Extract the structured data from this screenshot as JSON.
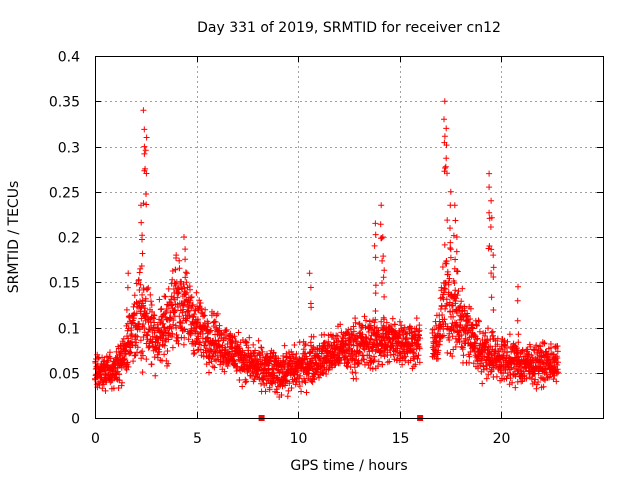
{
  "chart_data": {
    "type": "scatter",
    "title": "Day 331 of 2019, SRMTID for receiver cn12",
    "xlabel": "GPS time / hours",
    "ylabel": "SRMTID / TECUs",
    "xlim": [
      0,
      25
    ],
    "ylim": [
      0,
      0.4
    ],
    "grid": true,
    "marker": "plus",
    "color": "#ff0000",
    "x_ticks": [
      0,
      5,
      10,
      15,
      20
    ],
    "x_tick_labels": [
      "0",
      "5",
      "10",
      "15",
      "20"
    ],
    "y_ticks": [
      0,
      0.05,
      0.1,
      0.15,
      0.2,
      0.25,
      0.3,
      0.35,
      0.4
    ],
    "y_tick_labels": [
      "0",
      "0.05",
      "0.1",
      "0.15",
      "0.2",
      "0.25",
      "0.3",
      "0.35",
      "0.4"
    ],
    "series": [
      {
        "name": "SRMTID",
        "x_range": [
          0.0,
          22.8
        ],
        "sample_interval_hours": 0.0083,
        "data_gap_hours": [
          16.0,
          16.6
        ],
        "envelope": {
          "hours": [
            0.0,
            1.0,
            1.8,
            2.2,
            2.5,
            3.0,
            3.5,
            4.0,
            4.5,
            5.0,
            6.0,
            7.0,
            8.0,
            9.0,
            10.0,
            11.0,
            12.0,
            13.0,
            14.0,
            15.0,
            16.8,
            17.3,
            17.8,
            18.5,
            19.0,
            19.5,
            20.0,
            21.0,
            22.0,
            22.8
          ],
          "median": [
            0.05,
            0.055,
            0.085,
            0.12,
            0.11,
            0.09,
            0.1,
            0.13,
            0.12,
            0.1,
            0.085,
            0.07,
            0.055,
            0.05,
            0.055,
            0.065,
            0.075,
            0.08,
            0.085,
            0.085,
            0.08,
            0.14,
            0.11,
            0.09,
            0.075,
            0.07,
            0.065,
            0.06,
            0.06,
            0.06
          ],
          "spread": [
            0.015,
            0.02,
            0.03,
            0.045,
            0.04,
            0.03,
            0.035,
            0.035,
            0.035,
            0.03,
            0.025,
            0.02,
            0.02,
            0.02,
            0.02,
            0.02,
            0.02,
            0.025,
            0.025,
            0.02,
            0.02,
            0.05,
            0.04,
            0.03,
            0.025,
            0.02,
            0.02,
            0.02,
            0.018,
            0.018
          ]
        },
        "peaks": [
          {
            "x": 1.6,
            "y": 0.16
          },
          {
            "x": 2.3,
            "y": 0.235
          },
          {
            "x": 2.4,
            "y": 0.34
          },
          {
            "x": 2.5,
            "y": 0.31
          },
          {
            "x": 4.0,
            "y": 0.18
          },
          {
            "x": 4.4,
            "y": 0.2
          },
          {
            "x": 10.6,
            "y": 0.16
          },
          {
            "x": 13.8,
            "y": 0.215
          },
          {
            "x": 14.1,
            "y": 0.235
          },
          {
            "x": 14.2,
            "y": 0.2
          },
          {
            "x": 17.2,
            "y": 0.35
          },
          {
            "x": 17.3,
            "y": 0.32
          },
          {
            "x": 17.5,
            "y": 0.25
          },
          {
            "x": 17.7,
            "y": 0.235
          },
          {
            "x": 17.8,
            "y": 0.2
          },
          {
            "x": 19.4,
            "y": 0.27
          },
          {
            "x": 19.5,
            "y": 0.24
          },
          {
            "x": 19.6,
            "y": 0.18
          },
          {
            "x": 20.8,
            "y": 0.145
          }
        ],
        "zero_markers": [
          {
            "x": 8.2,
            "y": 0.0
          },
          {
            "x": 16.0,
            "y": 0.0
          }
        ]
      }
    ]
  }
}
